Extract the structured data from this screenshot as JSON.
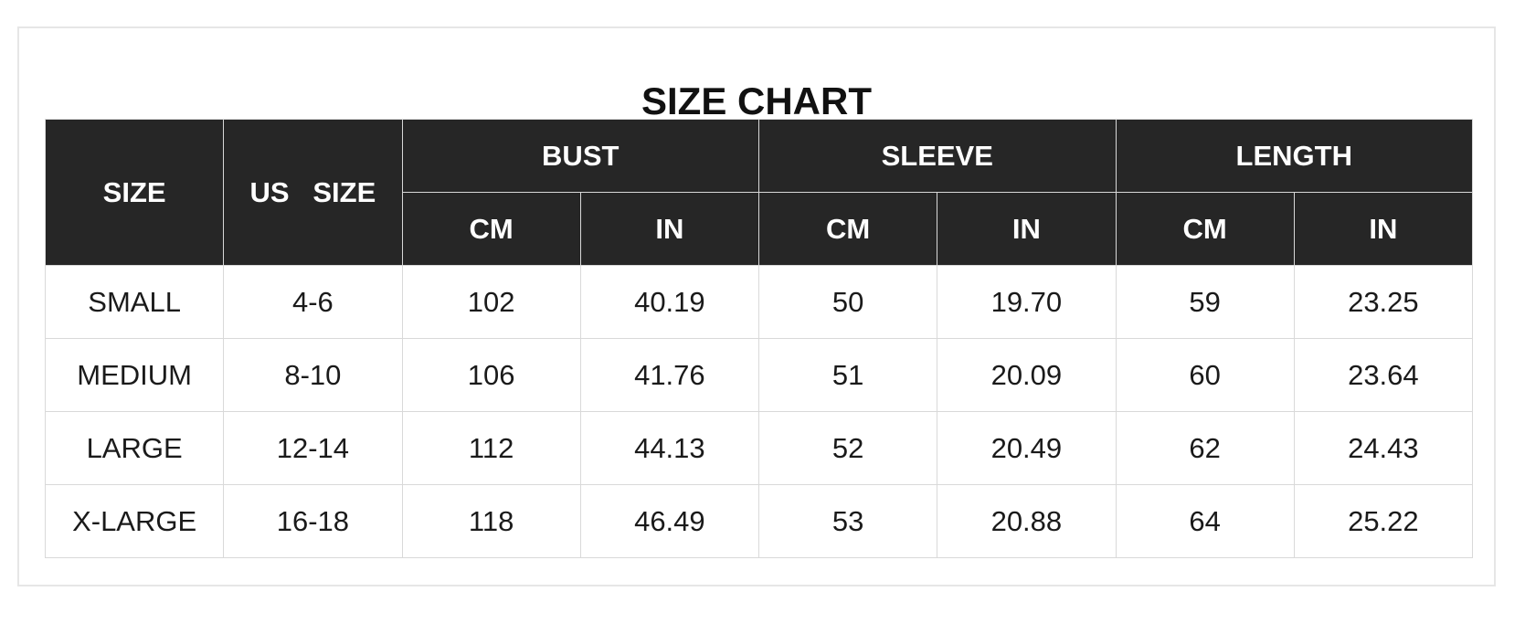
{
  "title": "SIZE CHART",
  "headers": {
    "size": "SIZE",
    "us_size": "US   SIZE",
    "groups": [
      "BUST",
      "SLEEVE",
      "LENGTH"
    ],
    "units": [
      "CM",
      "IN",
      "CM",
      "IN",
      "CM",
      "IN"
    ]
  },
  "rows": [
    [
      "SMALL",
      "4-6",
      "102",
      "40.19",
      "50",
      "19.70",
      "59",
      "23.25"
    ],
    [
      "MEDIUM",
      "8-10",
      "106",
      "41.76",
      "51",
      "20.09",
      "60",
      "23.64"
    ],
    [
      "LARGE",
      "12-14",
      "112",
      "44.13",
      "52",
      "20.49",
      "62",
      "24.43"
    ],
    [
      "X-LARGE",
      "16-18",
      "118",
      "46.49",
      "53",
      "20.88",
      "64",
      "25.22"
    ]
  ]
}
